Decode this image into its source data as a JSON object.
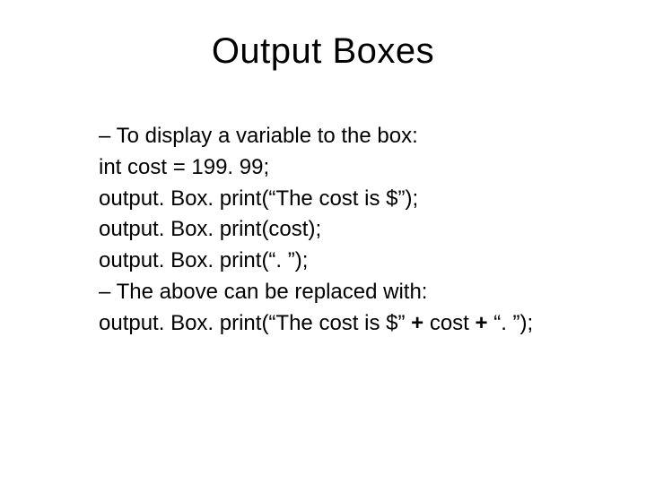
{
  "title": "Output Boxes",
  "lines": [
    "– To display a variable to the box:",
    "int cost = 199. 99;",
    "output. Box. print(“The cost is $”);",
    "output. Box. print(cost);",
    "output. Box. print(“. ”);",
    "– The above can be replaced with:"
  ],
  "lastLine": {
    "part1": "output. Box. print(“The cost is $” ",
    "bold1": "+",
    "part2": " cost ",
    "bold2": "+",
    "part3": " “. ”);"
  },
  "styles": {
    "background_color": "#ffffff",
    "text_color": "#000000",
    "title_fontsize": 40,
    "body_fontsize": 24,
    "font_family": "Arial"
  }
}
